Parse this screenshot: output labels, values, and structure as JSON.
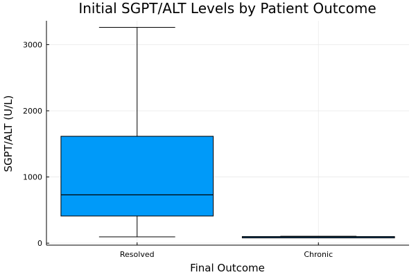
{
  "chart_data": {
    "type": "box",
    "title": "Initial SGPT/ALT Levels by Patient Outcome",
    "xlabel": "Final Outcome",
    "ylabel": "SGPT/ALT (U/L)",
    "categories": [
      "Resolved",
      "Chronic"
    ],
    "boxes": [
      {
        "category": "Resolved",
        "min": 95,
        "q1": 410,
        "median": 730,
        "q3": 1615,
        "max": 3260
      },
      {
        "category": "Chronic",
        "min": 88,
        "q1": 88,
        "median": 95,
        "q3": 100,
        "max": 105
      }
    ],
    "ylim": [
      -30,
      3360
    ],
    "yticks": [
      0,
      1000,
      2000,
      3000
    ],
    "ytick_labels": [
      "0",
      "1000",
      "2000",
      "3000"
    ],
    "grid": true,
    "legend": false,
    "colors": {
      "box": "#009af9",
      "line": "#000000",
      "grid": "#e9e9e9"
    }
  }
}
